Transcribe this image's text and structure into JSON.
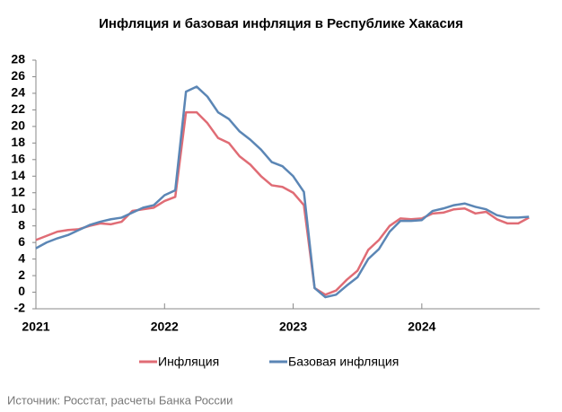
{
  "chart_data": {
    "type": "line",
    "title": "Инфляция и базовая инфляция в Республике Хакасия",
    "source": "Источник: Росстат, расчеты Банка России",
    "categories": [
      "2021",
      null,
      null,
      null,
      null,
      null,
      null,
      null,
      null,
      null,
      null,
      null,
      "2022",
      null,
      null,
      null,
      null,
      null,
      null,
      null,
      null,
      null,
      null,
      null,
      "2023",
      null,
      null,
      null,
      null,
      null,
      null,
      null,
      null,
      null,
      null,
      null,
      "2024",
      null,
      null,
      null,
      null,
      null,
      null,
      null,
      null,
      null,
      null
    ],
    "series": [
      {
        "name": "Инфляция",
        "color": "#e06c75",
        "values": [
          6.3,
          6.8,
          7.3,
          7.5,
          7.6,
          8.0,
          8.3,
          8.2,
          8.5,
          9.8,
          10.0,
          10.2,
          11.0,
          11.5,
          21.7,
          21.7,
          20.4,
          18.6,
          18.0,
          16.4,
          15.4,
          14.0,
          12.9,
          12.7,
          12.0,
          10.5,
          0.5,
          -0.3,
          0.2,
          1.5,
          2.6,
          5.1,
          6.3,
          8.0,
          8.9,
          8.8,
          8.9,
          9.5,
          9.6,
          10.0,
          10.1,
          9.5,
          9.7,
          8.8,
          8.3,
          8.3,
          9.0
        ]
      },
      {
        "name": "Базовая инфляция",
        "color": "#5b86b5",
        "values": [
          5.3,
          6.0,
          6.5,
          6.9,
          7.5,
          8.1,
          8.5,
          8.8,
          9.0,
          9.6,
          10.2,
          10.5,
          11.7,
          12.3,
          24.2,
          24.8,
          23.6,
          21.7,
          20.9,
          19.4,
          18.4,
          17.2,
          15.7,
          15.2,
          14.0,
          12.1,
          0.5,
          -0.6,
          -0.3,
          0.8,
          1.8,
          4.0,
          5.2,
          7.3,
          8.6,
          8.6,
          8.7,
          9.8,
          10.1,
          10.5,
          10.7,
          10.3,
          10.0,
          9.3,
          9.0,
          9.0,
          9.1
        ]
      }
    ],
    "ylim": [
      -2,
      28
    ],
    "yticks": [
      -2,
      0,
      2,
      4,
      6,
      8,
      10,
      12,
      14,
      16,
      18,
      20,
      22,
      24,
      26,
      28
    ],
    "grid": false,
    "legend": "bottom"
  }
}
